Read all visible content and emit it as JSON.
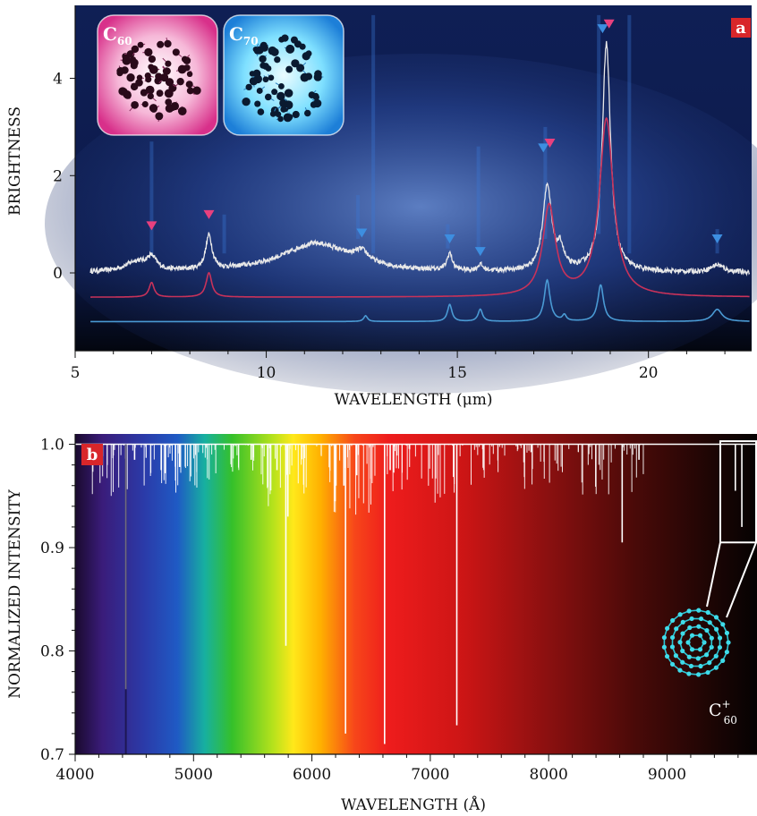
{
  "chart_data": [
    {
      "panel_label": "a",
      "type": "line",
      "xlabel": "WAVELENGTH (μm)",
      "ylabel": "BRIGHTNESS",
      "xlim": [
        5,
        22.7
      ],
      "ylim": [
        -1.6,
        5.5
      ],
      "xticks": [
        5,
        10,
        15,
        20
      ],
      "yticks": [
        0,
        2,
        4
      ],
      "grid": false,
      "background_color": "#0d1b48",
      "series": [
        {
          "color": "#e8e8e8",
          "baseline": 0,
          "peaks": [
            {
              "x": 6.6,
              "h": 0.2,
              "w": 0.35
            },
            {
              "x": 7.0,
              "h": 0.25,
              "w": 0.15
            },
            {
              "x": 8.5,
              "h": 0.7,
              "w": 0.1
            },
            {
              "x": 11.3,
              "h": 0.6,
              "w": 1.1
            },
            {
              "x": 12.5,
              "h": 0.22,
              "w": 0.22
            },
            {
              "x": 14.8,
              "h": 0.35,
              "w": 0.08
            },
            {
              "x": 15.6,
              "h": 0.12,
              "w": 0.08
            },
            {
              "x": 17.35,
              "h": 1.75,
              "w": 0.14
            },
            {
              "x": 17.7,
              "h": 0.4,
              "w": 0.1
            },
            {
              "x": 18.9,
              "h": 4.7,
              "w": 0.13
            },
            {
              "x": 21.8,
              "h": 0.15,
              "w": 0.2
            }
          ]
        },
        {
          "color": "#c8325a",
          "baseline": -0.5,
          "peaks": [
            {
              "x": 7.0,
              "h": 0.3,
              "w": 0.08
            },
            {
              "x": 8.5,
              "h": 0.5,
              "w": 0.09
            },
            {
              "x": 17.4,
              "h": 1.85,
              "w": 0.2
            },
            {
              "x": 18.9,
              "h": 3.65,
              "w": 0.22
            }
          ]
        },
        {
          "color": "#4a9ad4",
          "baseline": -1.0,
          "peaks": [
            {
              "x": 12.6,
              "h": 0.12,
              "w": 0.06
            },
            {
              "x": 14.8,
              "h": 0.35,
              "w": 0.07
            },
            {
              "x": 15.6,
              "h": 0.25,
              "w": 0.07
            },
            {
              "x": 17.35,
              "h": 0.85,
              "w": 0.09
            },
            {
              "x": 17.8,
              "h": 0.12,
              "w": 0.06
            },
            {
              "x": 18.75,
              "h": 0.75,
              "w": 0.09
            },
            {
              "x": 21.8,
              "h": 0.25,
              "w": 0.15
            }
          ]
        }
      ],
      "markers": [
        {
          "x": 7.0,
          "y": 0.95,
          "color": "#e8407e"
        },
        {
          "x": 8.5,
          "y": 1.18,
          "color": "#e8407e"
        },
        {
          "x": 12.5,
          "y": 0.8,
          "color": "#3d8ee0"
        },
        {
          "x": 14.8,
          "y": 0.68,
          "color": "#3d8ee0"
        },
        {
          "x": 15.6,
          "y": 0.42,
          "color": "#3d8ee0"
        },
        {
          "x": 17.25,
          "y": 2.55,
          "color": "#3d8ee0"
        },
        {
          "x": 17.42,
          "y": 2.65,
          "color": "#e8407e"
        },
        {
          "x": 18.8,
          "y": 5.0,
          "color": "#3d8ee0"
        },
        {
          "x": 18.97,
          "y": 5.1,
          "color": "#e8407e"
        },
        {
          "x": 21.8,
          "y": 0.68,
          "color": "#3d8ee0"
        }
      ],
      "insets": [
        {
          "name": "C",
          "subscript": "60",
          "color": "#e0407a"
        },
        {
          "name": "C",
          "subscript": "70",
          "color": "#3ec8f0"
        }
      ]
    },
    {
      "panel_label": "b",
      "type": "line",
      "xlabel": "WAVELENGTH (Å)",
      "ylabel": "NORMALIZED INTENSITY",
      "xlim": [
        4000,
        9760
      ],
      "ylim": [
        0.7,
        1.01
      ],
      "xticks": [
        4000,
        5000,
        6000,
        7000,
        8000,
        9000
      ],
      "yticks": [
        0.7,
        0.8,
        0.9,
        1.0
      ],
      "grid": false,
      "line_color": "#ffffff",
      "strong_lines": [
        {
          "x": 4428,
          "y": 0.763
        },
        {
          "x": 4502,
          "y": 0.985
        },
        {
          "x": 4727,
          "y": 0.975
        },
        {
          "x": 4762,
          "y": 0.972
        },
        {
          "x": 4882,
          "y": 0.978
        },
        {
          "x": 5487,
          "y": 0.985
        },
        {
          "x": 5705,
          "y": 0.975
        },
        {
          "x": 5780,
          "y": 0.805
        },
        {
          "x": 5797,
          "y": 0.93
        },
        {
          "x": 6196,
          "y": 0.945
        },
        {
          "x": 6203,
          "y": 0.96
        },
        {
          "x": 6270,
          "y": 0.96
        },
        {
          "x": 6284,
          "y": 0.72
        },
        {
          "x": 6379,
          "y": 0.97
        },
        {
          "x": 6614,
          "y": 0.71
        },
        {
          "x": 6661,
          "y": 0.975
        },
        {
          "x": 7224,
          "y": 0.728
        },
        {
          "x": 8621,
          "y": 0.905
        },
        {
          "x": 8763,
          "y": 0.985
        },
        {
          "x": 9577,
          "y": 0.955
        },
        {
          "x": 9632,
          "y": 0.92
        }
      ],
      "inset_box": {
        "x": [
          9450,
          9760
        ],
        "y": [
          0.905,
          1.003
        ]
      },
      "molecule_label": {
        "name": "C",
        "sup": "+",
        "sub": "60"
      }
    }
  ]
}
